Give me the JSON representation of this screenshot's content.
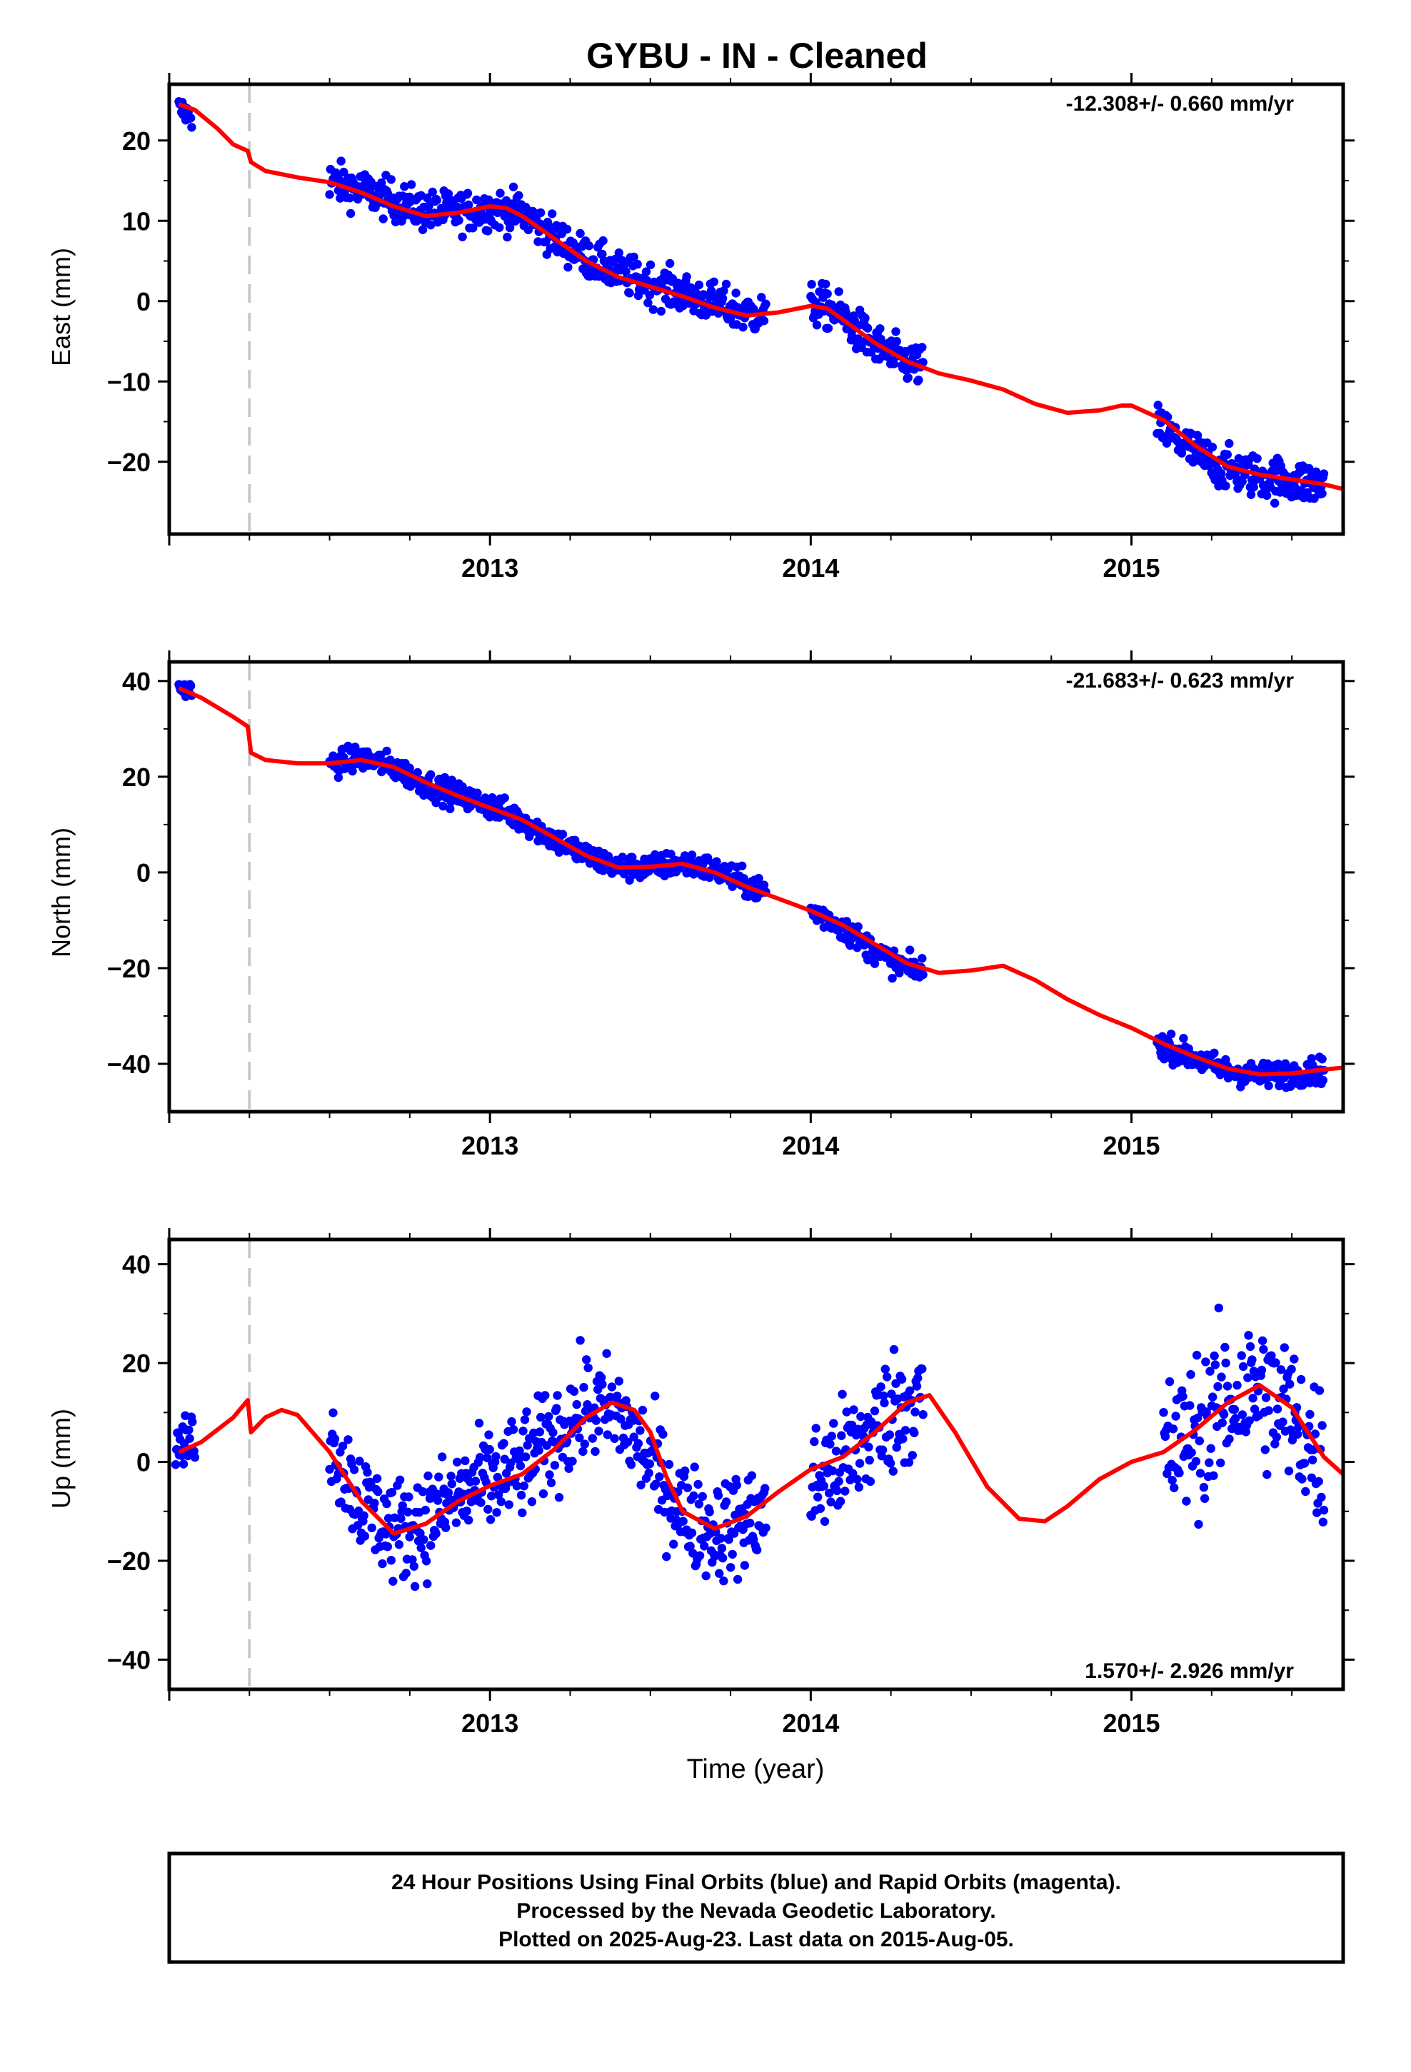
{
  "title": "GYBU  - IN - Cleaned",
  "xlabel": "Time (year)",
  "footer": {
    "line1": "24 Hour Positions Using Final Orbits (blue) and Rapid Orbits (magenta).",
    "line2": "Processed by the Nevada Geodetic Laboratory.",
    "line3": "Plotted on 2025-Aug-23. Last data on 2015-Aug-05."
  },
  "colors": {
    "data": "#0000ff",
    "model": "#ff0000",
    "offset_line": "#c8c8c8",
    "frame": "#000000"
  },
  "chart_data": [
    {
      "type": "scatter",
      "ylabel": "East (mm)",
      "rate_label": "-12.308+/- 0.660 mm/yr",
      "rate_position": "top-right",
      "xlim": [
        2012.0,
        2015.66
      ],
      "ylim": [
        -29,
        27
      ],
      "xticks": [
        2013,
        2014,
        2015
      ],
      "yticks": [
        -20,
        -10,
        0,
        10,
        20
      ],
      "offset_epoch": 2012.25,
      "data_segments": [
        {
          "x": [
            2012.03,
            2012.07
          ],
          "model": [
            24,
            23
          ],
          "scatter": 1.2
        },
        {
          "x": [
            2012.5,
            2012.6,
            2012.7,
            2012.8,
            2012.9,
            2013.0,
            2013.1,
            2013.2,
            2013.3,
            2013.4,
            2013.5,
            2013.6,
            2013.7,
            2013.8,
            2013.86
          ],
          "model": [
            15,
            13.8,
            12.5,
            11.2,
            11.1,
            11.5,
            11.0,
            8.0,
            5.5,
            3.5,
            2.2,
            1.0,
            -0.3,
            -1.5,
            -1.6
          ],
          "scatter": 1.8
        },
        {
          "x": [
            2014.0,
            2014.05,
            2014.1,
            2014.15,
            2014.2,
            2014.25,
            2014.3,
            2014.35
          ],
          "model": [
            -0.5,
            -0.7,
            -2.0,
            -3.8,
            -5.5,
            -6.8,
            -7.6,
            -8.2
          ],
          "scatter": 1.9
        },
        {
          "x": [
            2015.08,
            2015.15,
            2015.2,
            2015.3,
            2015.4,
            2015.5,
            2015.6
          ],
          "model": [
            -15.5,
            -17.5,
            -19.0,
            -21.0,
            -21.8,
            -22.4,
            -22.9
          ],
          "scatter": 1.9
        }
      ],
      "model_curve": {
        "x": [
          2012.03,
          2012.08,
          2012.15,
          2012.2,
          2012.245,
          2012.255,
          2012.3,
          2012.4,
          2012.5,
          2012.6,
          2012.7,
          2012.8,
          2012.9,
          2013.0,
          2013.05,
          2013.1,
          2013.2,
          2013.3,
          2013.4,
          2013.5,
          2013.6,
          2013.7,
          2013.8,
          2013.9,
          2014.0,
          2014.05,
          2014.1,
          2014.2,
          2014.3,
          2014.4,
          2014.5,
          2014.6,
          2014.7,
          2014.8,
          2014.9,
          2014.97,
          2015.0,
          2015.1,
          2015.2,
          2015.3,
          2015.4,
          2015.5,
          2015.6,
          2015.66
        ],
        "y": [
          24.5,
          23.8,
          21.5,
          19.5,
          18.7,
          17.3,
          16.2,
          15.4,
          14.8,
          13.5,
          11.8,
          10.6,
          11.0,
          11.8,
          11.6,
          10.6,
          7.8,
          5.0,
          3.0,
          1.8,
          0.6,
          -0.8,
          -1.8,
          -1.4,
          -0.6,
          -0.9,
          -2.3,
          -5.2,
          -7.5,
          -9.0,
          -9.9,
          -11.0,
          -12.8,
          -13.9,
          -13.6,
          -13.0,
          -13.0,
          -14.8,
          -18.0,
          -20.6,
          -21.6,
          -22.2,
          -22.8,
          -23.4
        ]
      }
    },
    {
      "type": "scatter",
      "ylabel": "North (mm)",
      "rate_label": "-21.683+/- 0.623 mm/yr",
      "rate_position": "top-right",
      "xlim": [
        2012.0,
        2015.66
      ],
      "ylim": [
        -50,
        44
      ],
      "xticks": [
        2013,
        2014,
        2015
      ],
      "yticks": [
        -40,
        -20,
        0,
        20,
        40
      ],
      "offset_epoch": 2012.25,
      "data_segments": [
        {
          "x": [
            2012.03,
            2012.07
          ],
          "model": [
            39,
            38
          ],
          "scatter": 1.2
        },
        {
          "x": [
            2012.5,
            2012.6,
            2012.7,
            2012.8,
            2012.9,
            2013.0,
            2013.1,
            2013.2,
            2013.3,
            2013.4,
            2013.5,
            2013.6,
            2013.7,
            2013.8,
            2013.86
          ],
          "model": [
            22.5,
            24.0,
            22.0,
            18.5,
            16.0,
            14.0,
            11.0,
            7.0,
            3.5,
            1.0,
            1.0,
            2.0,
            0.5,
            -2.5,
            -4.0
          ],
          "scatter": 1.9
        },
        {
          "x": [
            2014.0,
            2014.05,
            2014.1,
            2014.15,
            2014.2,
            2014.25,
            2014.3,
            2014.35
          ],
          "model": [
            -8.0,
            -9.5,
            -11.5,
            -14.0,
            -16.5,
            -18.5,
            -20.0,
            -20.5
          ],
          "scatter": 1.9
        },
        {
          "x": [
            2015.08,
            2015.15,
            2015.2,
            2015.3,
            2015.4,
            2015.5,
            2015.6
          ],
          "model": [
            -35.5,
            -37.5,
            -39.0,
            -41.5,
            -42.5,
            -42.0,
            -41.2
          ],
          "scatter": 1.9
        }
      ],
      "model_curve": {
        "x": [
          2012.03,
          2012.1,
          2012.2,
          2012.245,
          2012.255,
          2012.3,
          2012.4,
          2012.5,
          2012.6,
          2012.7,
          2012.8,
          2012.9,
          2013.0,
          2013.1,
          2013.2,
          2013.3,
          2013.4,
          2013.5,
          2013.6,
          2013.7,
          2013.8,
          2013.9,
          2014.0,
          2014.1,
          2014.2,
          2014.3,
          2014.4,
          2014.5,
          2014.6,
          2014.7,
          2014.8,
          2014.9,
          2015.0,
          2015.1,
          2015.2,
          2015.3,
          2015.4,
          2015.5,
          2015.6,
          2015.66
        ],
        "y": [
          38.5,
          36.5,
          32.5,
          30.5,
          25.0,
          23.5,
          22.8,
          22.8,
          23.5,
          22.0,
          18.8,
          16.0,
          13.5,
          11.0,
          7.3,
          3.5,
          1.0,
          1.2,
          1.8,
          0.0,
          -3.0,
          -5.5,
          -8.0,
          -11.0,
          -15.0,
          -19.0,
          -21.0,
          -20.5,
          -19.5,
          -22.5,
          -26.5,
          -29.8,
          -32.5,
          -35.8,
          -38.6,
          -41.0,
          -42.2,
          -42.0,
          -41.2,
          -40.8
        ]
      }
    },
    {
      "type": "scatter",
      "ylabel": "Up (mm)",
      "rate_label": "1.570+/- 2.926 mm/yr",
      "rate_position": "bottom-right",
      "xlim": [
        2012.0,
        2015.66
      ],
      "ylim": [
        -46,
        45
      ],
      "xticks": [
        2013,
        2014,
        2015
      ],
      "yticks": [
        -40,
        -20,
        0,
        20,
        40
      ],
      "offset_epoch": 2012.25,
      "data_segments": [
        {
          "x": [
            2012.02,
            2012.04,
            2012.06,
            2012.08
          ],
          "model": [
            3,
            3,
            4,
            5
          ],
          "scatter": 4.0
        },
        {
          "x": [
            2012.5,
            2012.55,
            2012.6,
            2012.7,
            2012.8,
            2012.9,
            2013.0,
            2013.1,
            2013.2,
            2013.3,
            2013.4,
            2013.5,
            2013.6,
            2013.7,
            2013.8,
            2013.86
          ],
          "model": [
            6,
            -2,
            -8,
            -14,
            -12,
            -7,
            -4,
            -1,
            5,
            11,
            10,
            0,
            -10,
            -14,
            -12,
            -10
          ],
          "scatter": 7.5
        },
        {
          "x": [
            2014.0,
            2014.05,
            2014.1,
            2014.15,
            2014.2,
            2014.25,
            2014.3,
            2014.35
          ],
          "model": [
            -6,
            -2,
            0,
            3,
            7,
            10,
            12,
            13
          ],
          "scatter": 9.0
        },
        {
          "x": [
            2015.1,
            2015.15,
            2015.2,
            2015.3,
            2015.4,
            2015.5,
            2015.6
          ],
          "model": [
            1,
            3,
            6,
            12,
            15,
            9,
            0
          ],
          "scatter": 11.0
        }
      ],
      "model_curve": {
        "x": [
          2012.03,
          2012.1,
          2012.2,
          2012.245,
          2012.255,
          2012.3,
          2012.35,
          2012.4,
          2012.5,
          2012.6,
          2012.7,
          2012.8,
          2012.9,
          2013.0,
          2013.1,
          2013.2,
          2013.3,
          2013.38,
          2013.45,
          2013.5,
          2013.55,
          2013.6,
          2013.7,
          2013.8,
          2013.9,
          2014.0,
          2014.1,
          2014.2,
          2014.3,
          2014.37,
          2014.45,
          2014.55,
          2014.65,
          2014.73,
          2014.8,
          2014.9,
          2015.0,
          2015.1,
          2015.2,
          2015.3,
          2015.4,
          2015.5,
          2015.6,
          2015.66
        ],
        "y": [
          2.0,
          4.0,
          9.0,
          12.5,
          6.0,
          9.0,
          10.5,
          9.5,
          2.0,
          -8.0,
          -14.5,
          -12.5,
          -8.0,
          -4.8,
          -2.5,
          2.5,
          9.0,
          12.0,
          10.5,
          6.0,
          -3.0,
          -10.0,
          -13.5,
          -11.0,
          -6.0,
          -1.5,
          1.0,
          6.0,
          12.0,
          13.5,
          6.0,
          -5.0,
          -11.5,
          -12.0,
          -9.0,
          -3.5,
          0.0,
          2.0,
          6.5,
          12.0,
          15.5,
          11.0,
          1.0,
          -2.5
        ]
      }
    }
  ]
}
